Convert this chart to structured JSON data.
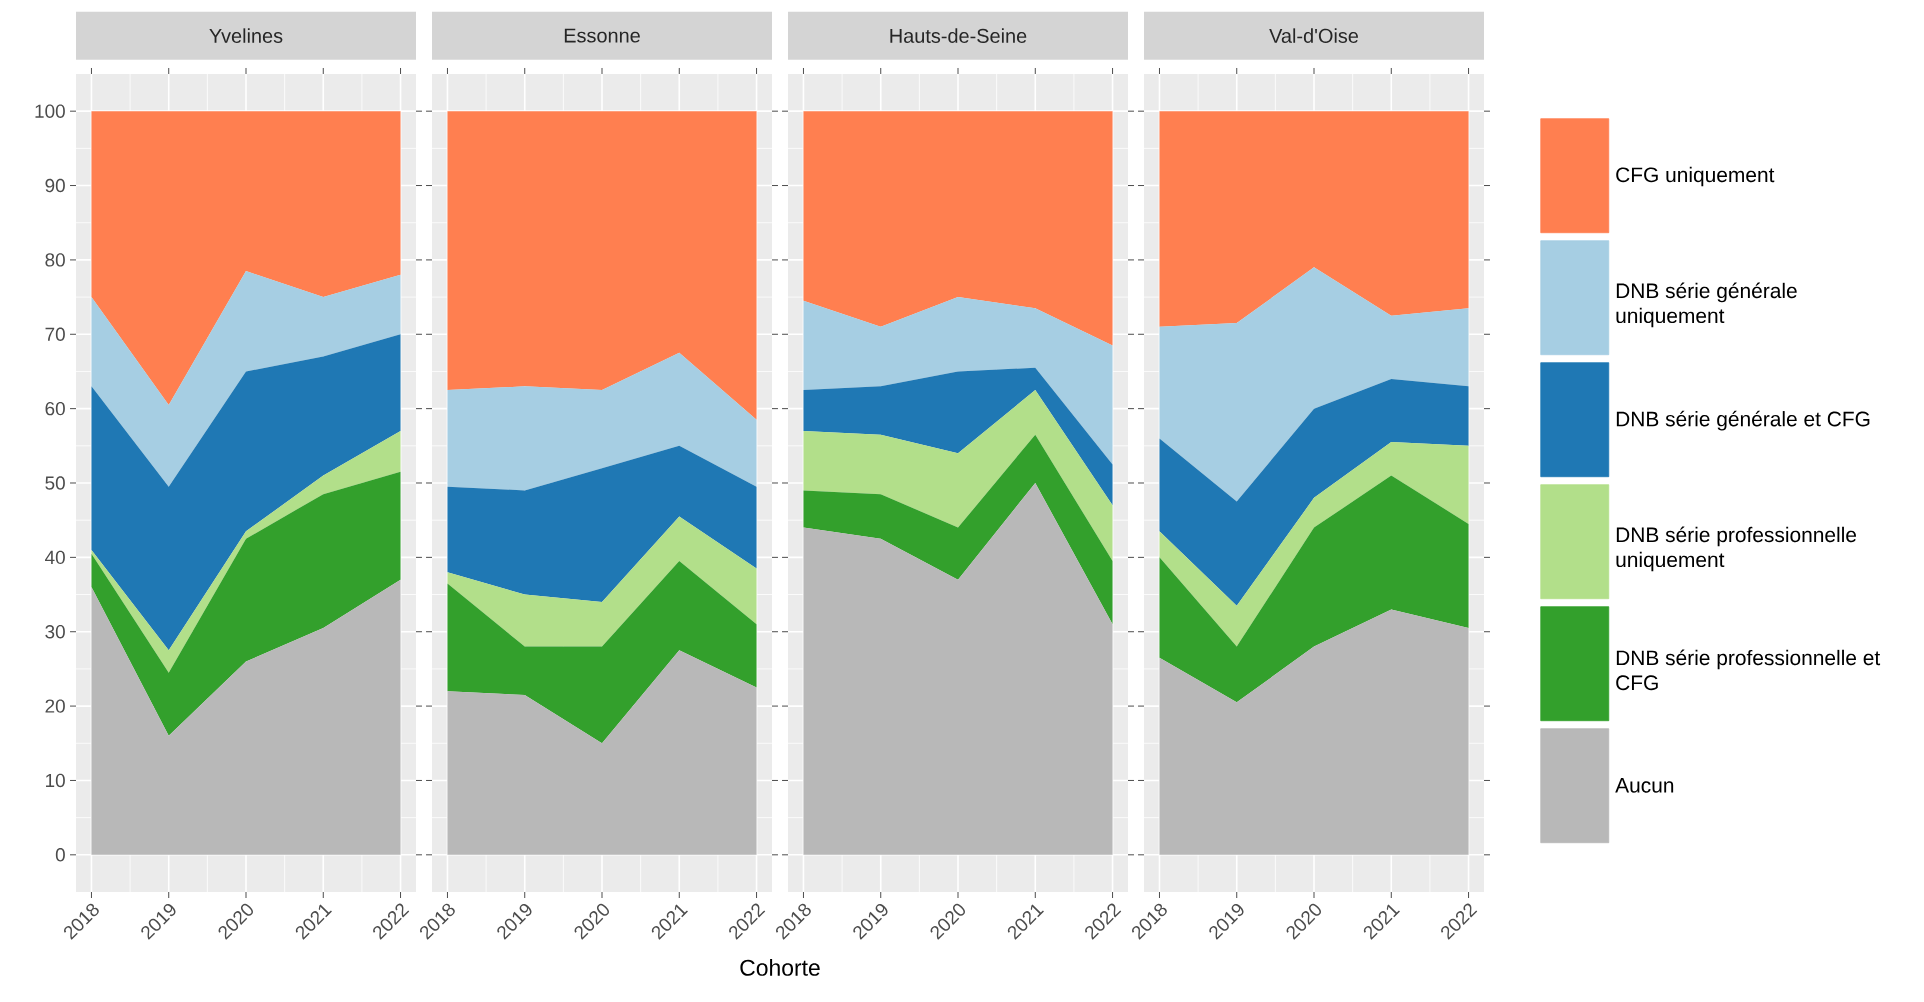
{
  "chart_data": [
    {
      "type": "area",
      "title": "Yvelines",
      "stacked": true,
      "x": [
        2018,
        2019,
        2020,
        2021,
        2022
      ],
      "xlim": [
        2017.8,
        2022.2
      ],
      "xticks": [
        2018,
        2019,
        2020,
        2021,
        2022
      ],
      "ylim": [
        -5,
        105
      ],
      "yticks": [
        0,
        10,
        20,
        30,
        40,
        50,
        60,
        70,
        80,
        90,
        100
      ],
      "grid": true,
      "series": [
        {
          "color": "#b8b8b8",
          "values": [
            36,
            16,
            26,
            30.5,
            37
          ]
        },
        {
          "color": "#33a02c",
          "values": [
            4.5,
            8.5,
            16.5,
            18,
            14.5
          ]
        },
        {
          "color": "#b2df8a",
          "values": [
            0.5,
            3,
            1,
            2.5,
            5.5
          ]
        },
        {
          "color": "#1f78b4",
          "values": [
            22,
            22,
            21.5,
            16,
            13
          ]
        },
        {
          "color": "#a6cee3",
          "values": [
            12,
            11,
            13.5,
            8,
            8
          ]
        },
        {
          "color": "#ff7f50",
          "values": [
            25,
            39.5,
            21.5,
            25,
            22
          ]
        }
      ]
    },
    {
      "type": "area",
      "title": "Essonne",
      "xlabel": "Cohorte",
      "stacked": true,
      "x": [
        2018,
        2019,
        2020,
        2021,
        2022
      ],
      "xlim": [
        2017.8,
        2022.2
      ],
      "xticks": [
        2018,
        2019,
        2020,
        2021,
        2022
      ],
      "ylim": [
        -5,
        105
      ],
      "yticks": [
        0,
        10,
        20,
        30,
        40,
        50,
        60,
        70,
        80,
        90,
        100
      ],
      "grid": true,
      "tick_labels": "x",
      "series": [
        {
          "color": "#b8b8b8",
          "values": [
            22,
            21.5,
            15,
            27.5,
            22.5
          ]
        },
        {
          "color": "#33a02c",
          "values": [
            14.5,
            6.5,
            13,
            12,
            8.5
          ]
        },
        {
          "color": "#b2df8a",
          "values": [
            1.5,
            7,
            6,
            6,
            7.5
          ]
        },
        {
          "color": "#1f78b4",
          "values": [
            11.5,
            14,
            18,
            9.5,
            11
          ]
        },
        {
          "color": "#a6cee3",
          "values": [
            13,
            14,
            10.5,
            12.5,
            9
          ]
        },
        {
          "color": "#ff7f50",
          "values": [
            37.5,
            37,
            37.5,
            32.5,
            41.5
          ]
        }
      ]
    },
    {
      "type": "area",
      "title": "Hauts-de-Seine",
      "stacked": true,
      "x": [
        2018,
        2019,
        2020,
        2021,
        2022
      ],
      "xlim": [
        2017.8,
        2022.2
      ],
      "xticks": [
        2018,
        2019,
        2020,
        2021,
        2022
      ],
      "ylim": [
        -5,
        105
      ],
      "yticks": [
        0,
        10,
        20,
        30,
        40,
        50,
        60,
        70,
        80,
        90,
        100
      ],
      "grid": true,
      "tick_labels": "x",
      "series": [
        {
          "color": "#b8b8b8",
          "values": [
            44,
            42.5,
            37,
            50,
            31
          ]
        },
        {
          "color": "#33a02c",
          "values": [
            5,
            6,
            7,
            6.5,
            8.5
          ]
        },
        {
          "color": "#b2df8a",
          "values": [
            8,
            8,
            10,
            6,
            7.5
          ]
        },
        {
          "color": "#1f78b4",
          "values": [
            5.5,
            6.5,
            11,
            3,
            5.5
          ]
        },
        {
          "color": "#a6cee3",
          "values": [
            12,
            8,
            10,
            8,
            16
          ]
        },
        {
          "color": "#ff7f50",
          "values": [
            25.5,
            29,
            25,
            26.5,
            31.5
          ]
        }
      ]
    },
    {
      "type": "area",
      "title": "Val-d'Oise",
      "stacked": true,
      "x": [
        2018,
        2019,
        2020,
        2021,
        2022
      ],
      "xlim": [
        2017.8,
        2022.2
      ],
      "xticks": [
        2018,
        2019,
        2020,
        2021,
        2022
      ],
      "ylim": [
        -5,
        105
      ],
      "yticks": [
        0,
        10,
        20,
        30,
        40,
        50,
        60,
        70,
        80,
        90,
        100
      ],
      "grid": true,
      "tick_labels": "x",
      "legend": "right",
      "series": [
        {
          "name": "Aucun",
          "color": "#b8b8b8",
          "values": [
            26.5,
            20.5,
            28,
            33,
            30.5
          ]
        },
        {
          "name": "DNB série professionnelle et CFG",
          "color": "#33a02c",
          "values": [
            13.5,
            7.5,
            16,
            18,
            14
          ]
        },
        {
          "name": "DNB série professionnelle uniquement",
          "color": "#b2df8a",
          "values": [
            3.5,
            5.5,
            4,
            4.5,
            10.5
          ]
        },
        {
          "name": "DNB série générale et CFG",
          "color": "#1f78b4",
          "values": [
            12.5,
            14,
            12,
            8.5,
            8
          ]
        },
        {
          "name": "DNB série générale uniquement",
          "color": "#a6cee3",
          "values": [
            15,
            24,
            19,
            8.5,
            10.5
          ]
        },
        {
          "name": "CFG uniquement",
          "color": "#ff7f50",
          "values": [
            29,
            28.5,
            21,
            27.5,
            26.5
          ]
        }
      ]
    }
  ]
}
